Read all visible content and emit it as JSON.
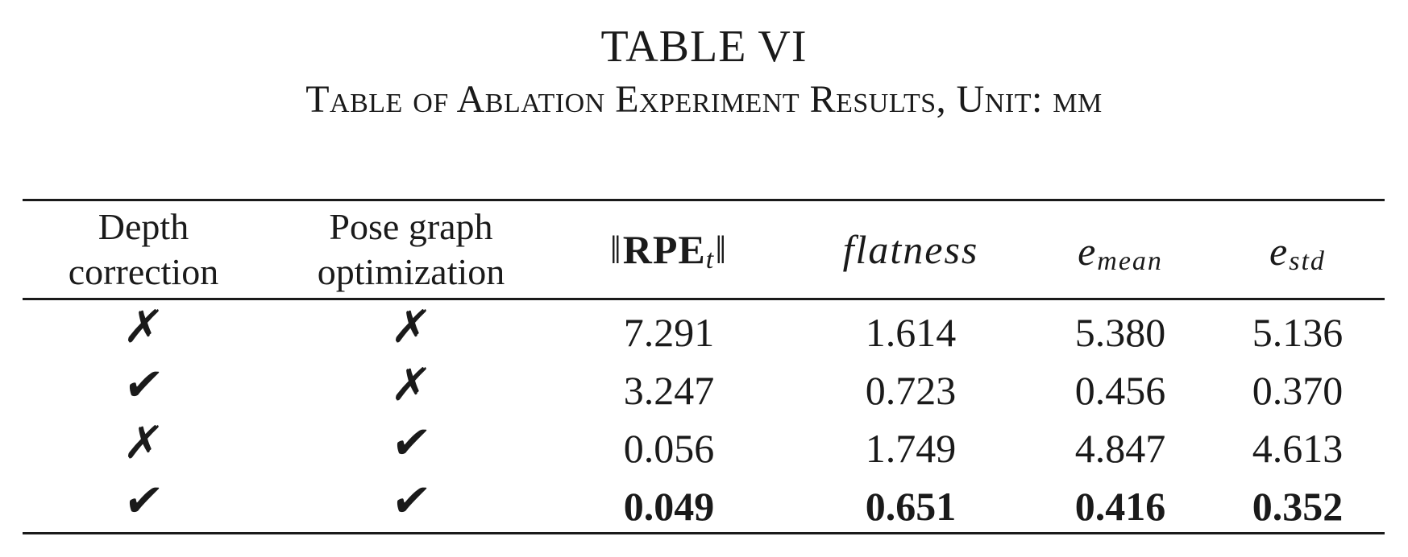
{
  "table": {
    "number": "TABLE VI",
    "caption": "Table of Ablation Experiment Results, Unit: mm",
    "header": {
      "depth_correction": [
        "Depth",
        "correction"
      ],
      "pose_graph": [
        "Pose graph",
        "optimization"
      ],
      "rpe": {
        "prefix": "‖",
        "main": "RPE",
        "sub": "t",
        "suffix": "‖"
      },
      "flatness": "flatness",
      "e_mean": {
        "base": "e",
        "sub": "mean"
      },
      "e_std": {
        "base": "e",
        "sub": "std"
      }
    },
    "rows": [
      {
        "depth": "✗",
        "pose": "✗",
        "rpe": "7.291",
        "flatness": "1.614",
        "e_mean": "5.380",
        "e_std": "5.136"
      },
      {
        "depth": "✔",
        "pose": "✗",
        "rpe": "3.247",
        "flatness": "0.723",
        "e_mean": "0.456",
        "e_std": "0.370"
      },
      {
        "depth": "✗",
        "pose": "✔",
        "rpe": "0.056",
        "flatness": "1.749",
        "e_mean": "4.847",
        "e_std": "4.613"
      },
      {
        "depth": "✔",
        "pose": "✔",
        "rpe": "0.049",
        "flatness": "0.651",
        "e_mean": "0.416",
        "e_std": "0.352"
      }
    ]
  }
}
